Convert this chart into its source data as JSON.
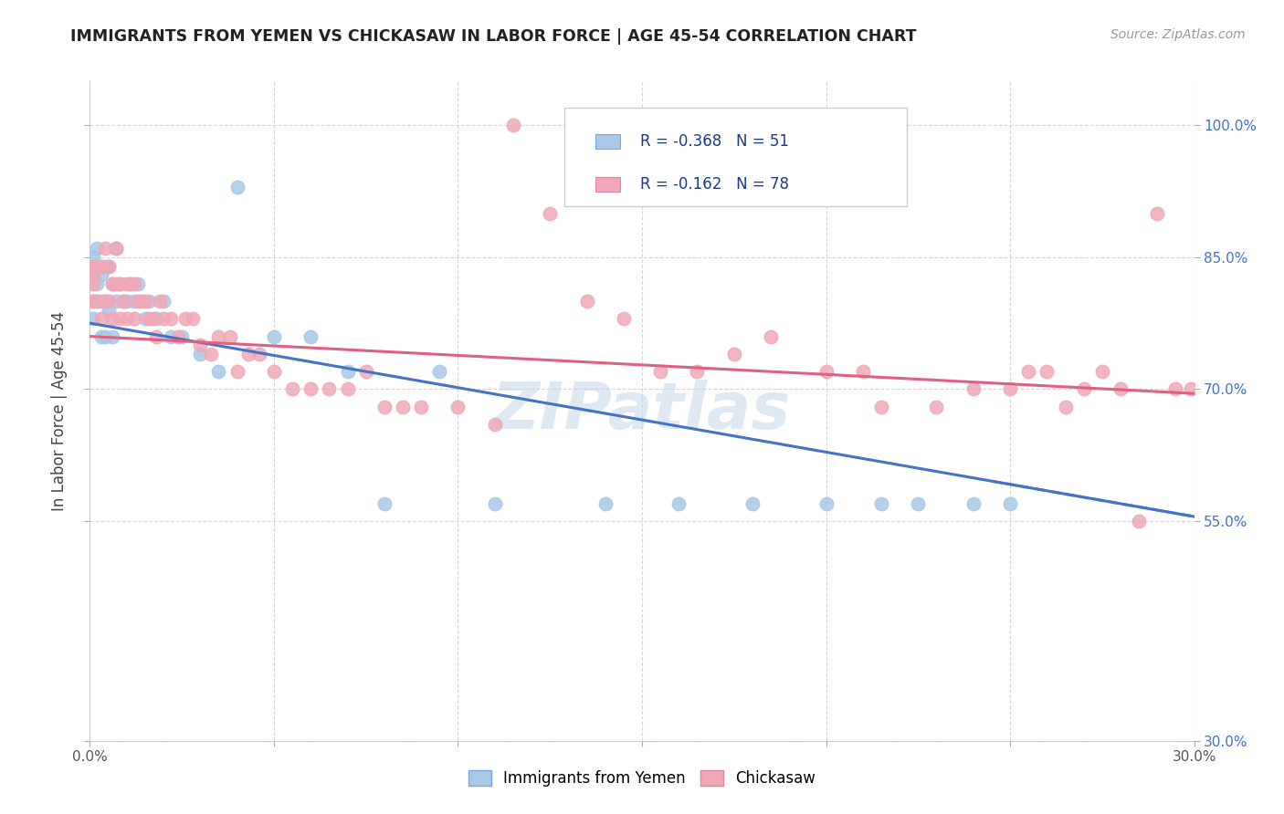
{
  "title": "IMMIGRANTS FROM YEMEN VS CHICKASAW IN LABOR FORCE | AGE 45-54 CORRELATION CHART",
  "source": "Source: ZipAtlas.com",
  "ylabel": "In Labor Force | Age 45-54",
  "xlim": [
    0.0,
    0.3
  ],
  "ylim": [
    0.3,
    1.05
  ],
  "xticks": [
    0.0,
    0.05,
    0.1,
    0.15,
    0.2,
    0.25,
    0.3
  ],
  "yticks": [
    0.3,
    0.55,
    0.7,
    0.85,
    1.0
  ],
  "ytick_labels_right": [
    "30.0%",
    "55.0%",
    "70.0%",
    "85.0%",
    "100.0%"
  ],
  "watermark": "ZIPatlas",
  "legend_r1": "-0.368",
  "legend_n1": "51",
  "legend_r2": "-0.162",
  "legend_n2": "78",
  "legend_label1": "Immigrants from Yemen",
  "legend_label2": "Chickasaw",
  "color_yemen": "#a8c8e8",
  "color_chickasaw": "#f0a8b8",
  "color_line_yemen": "#4472c4",
  "color_line_chickasaw": "#e06080",
  "line_yemen_x0": 0.0,
  "line_yemen_y0": 0.775,
  "line_yemen_x1": 0.3,
  "line_yemen_y1": 0.555,
  "line_chickasaw_x0": 0.0,
  "line_chickasaw_y0": 0.76,
  "line_chickasaw_x1": 0.3,
  "line_chickasaw_y1": 0.695,
  "yemen_x": [
    0.001,
    0.001,
    0.001,
    0.001,
    0.001,
    0.002,
    0.002,
    0.002,
    0.002,
    0.003,
    0.003,
    0.003,
    0.003,
    0.004,
    0.004,
    0.004,
    0.005,
    0.005,
    0.006,
    0.006,
    0.007,
    0.007,
    0.008,
    0.009,
    0.01,
    0.011,
    0.012,
    0.013,
    0.015,
    0.016,
    0.018,
    0.02,
    0.022,
    0.025,
    0.03,
    0.035,
    0.04,
    0.05,
    0.06,
    0.07,
    0.08,
    0.095,
    0.11,
    0.14,
    0.16,
    0.18,
    0.2,
    0.215,
    0.225,
    0.24,
    0.25
  ],
  "yemen_y": [
    0.84,
    0.85,
    0.83,
    0.8,
    0.78,
    0.86,
    0.84,
    0.82,
    0.8,
    0.84,
    0.83,
    0.8,
    0.76,
    0.84,
    0.8,
    0.76,
    0.84,
    0.79,
    0.82,
    0.76,
    0.86,
    0.8,
    0.82,
    0.8,
    0.8,
    0.82,
    0.8,
    0.82,
    0.78,
    0.8,
    0.78,
    0.8,
    0.76,
    0.76,
    0.74,
    0.72,
    0.93,
    0.76,
    0.76,
    0.72,
    0.57,
    0.72,
    0.57,
    0.57,
    0.57,
    0.57,
    0.57,
    0.57,
    0.57,
    0.57,
    0.57
  ],
  "chickasaw_x": [
    0.001,
    0.001,
    0.001,
    0.001,
    0.002,
    0.002,
    0.003,
    0.003,
    0.004,
    0.004,
    0.005,
    0.005,
    0.006,
    0.006,
    0.007,
    0.007,
    0.008,
    0.008,
    0.009,
    0.01,
    0.01,
    0.011,
    0.012,
    0.012,
    0.013,
    0.014,
    0.015,
    0.016,
    0.017,
    0.018,
    0.019,
    0.02,
    0.022,
    0.024,
    0.026,
    0.028,
    0.03,
    0.033,
    0.035,
    0.038,
    0.04,
    0.043,
    0.046,
    0.05,
    0.055,
    0.06,
    0.065,
    0.07,
    0.075,
    0.08,
    0.085,
    0.09,
    0.1,
    0.11,
    0.115,
    0.125,
    0.135,
    0.145,
    0.155,
    0.165,
    0.175,
    0.185,
    0.2,
    0.21,
    0.215,
    0.23,
    0.24,
    0.25,
    0.255,
    0.26,
    0.265,
    0.27,
    0.275,
    0.28,
    0.285,
    0.29,
    0.295,
    0.299
  ],
  "chickasaw_y": [
    0.84,
    0.83,
    0.82,
    0.8,
    0.84,
    0.8,
    0.84,
    0.78,
    0.86,
    0.8,
    0.84,
    0.8,
    0.82,
    0.78,
    0.86,
    0.82,
    0.82,
    0.78,
    0.8,
    0.82,
    0.78,
    0.82,
    0.82,
    0.78,
    0.8,
    0.8,
    0.8,
    0.78,
    0.78,
    0.76,
    0.8,
    0.78,
    0.78,
    0.76,
    0.78,
    0.78,
    0.75,
    0.74,
    0.76,
    0.76,
    0.72,
    0.74,
    0.74,
    0.72,
    0.7,
    0.7,
    0.7,
    0.7,
    0.72,
    0.68,
    0.68,
    0.68,
    0.68,
    0.66,
    1.0,
    0.9,
    0.8,
    0.78,
    0.72,
    0.72,
    0.74,
    0.76,
    0.72,
    0.72,
    0.68,
    0.68,
    0.7,
    0.7,
    0.72,
    0.72,
    0.68,
    0.7,
    0.72,
    0.7,
    0.55,
    0.9,
    0.7,
    0.7
  ]
}
